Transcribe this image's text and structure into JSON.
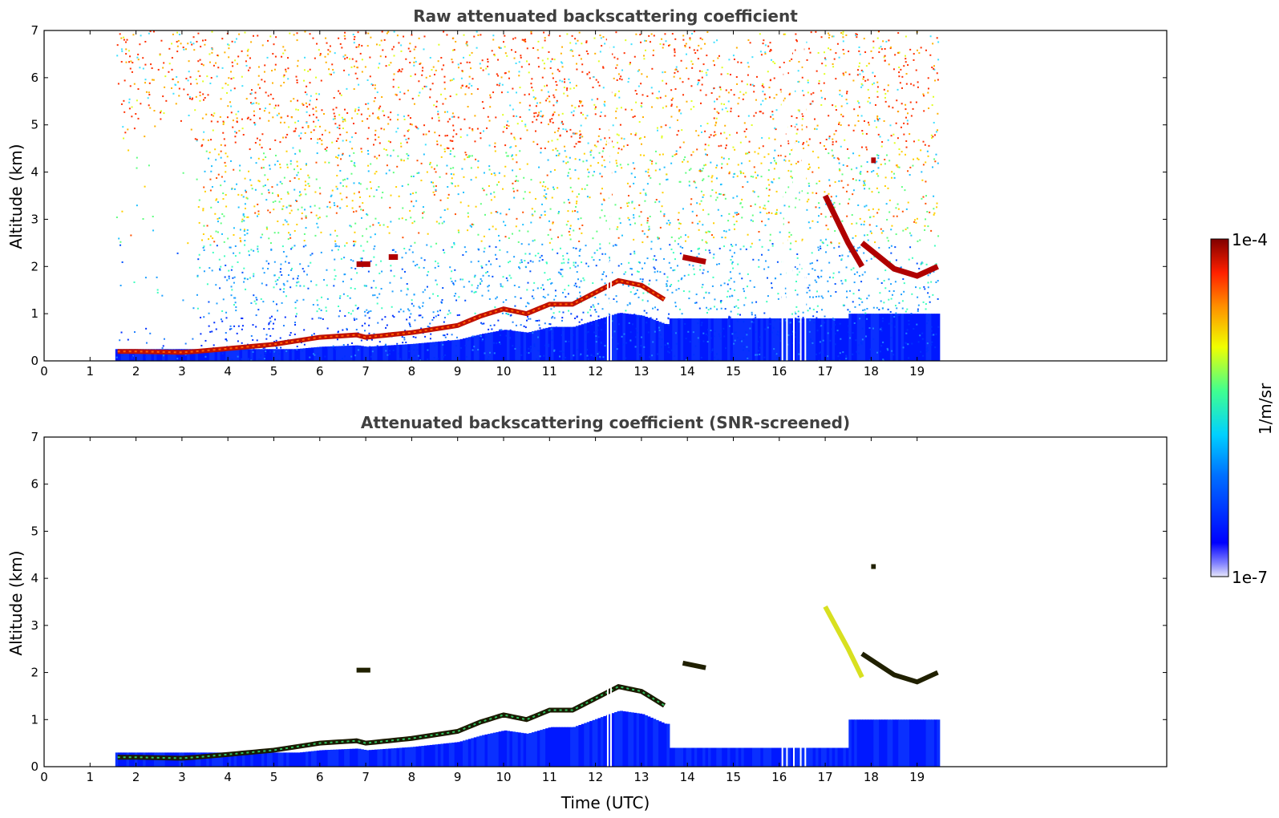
{
  "chart_data": [
    {
      "type": "heatmap",
      "title": "Raw attenuated backscattering coefficient",
      "xlabel": "",
      "ylabel": "Altitude (km)",
      "xlim": [
        0,
        24
      ],
      "ylim": [
        0,
        7
      ],
      "x_ticks": [
        "0",
        "1",
        "2",
        "3",
        "4",
        "5",
        "6",
        "7",
        "8",
        "9",
        "10",
        "11",
        "12",
        "13",
        "14",
        "15",
        "16",
        "17",
        "18",
        "19"
      ],
      "y_ticks": [
        "0",
        "1",
        "2",
        "3",
        "4",
        "5",
        "6",
        "7"
      ],
      "data_time_range": [
        1.55,
        19.45
      ],
      "boundary_layer_top": {
        "x": [
          1.6,
          2.0,
          3.0,
          3.3,
          4.0,
          5.0,
          6.0,
          6.8,
          7.0,
          8.0,
          9.0,
          9.5,
          10.0,
          10.5,
          11.0,
          11.5,
          12.0,
          12.5,
          13.0,
          13.5
        ],
        "y": [
          0.2,
          0.2,
          0.18,
          0.2,
          0.26,
          0.35,
          0.5,
          0.55,
          0.5,
          0.6,
          0.75,
          0.95,
          1.1,
          1.0,
          1.2,
          1.2,
          1.45,
          1.7,
          1.6,
          1.3
        ]
      },
      "cloud_layers": [
        {
          "x": [
            6.8,
            7.1
          ],
          "y": [
            2.05,
            2.05
          ]
        },
        {
          "x": [
            7.5,
            7.7
          ],
          "y": [
            2.2,
            2.2
          ]
        },
        {
          "x": [
            13.9,
            14.4
          ],
          "y": [
            2.2,
            2.1
          ]
        },
        {
          "x": [
            17.0,
            17.5,
            17.8
          ],
          "y": [
            3.5,
            2.5,
            2.0
          ]
        },
        {
          "x": [
            17.8,
            18.5,
            19.0,
            19.45
          ],
          "y": [
            2.5,
            1.95,
            1.8,
            2.0
          ]
        },
        {
          "x": [
            18.0,
            18.1
          ],
          "y": [
            4.25,
            4.25
          ]
        }
      ],
      "colorbar": {
        "min": "1e-7",
        "max": "1e-4",
        "label": "1/m/sr",
        "colormap": "jet"
      }
    },
    {
      "type": "heatmap",
      "title": "Attenuated backscattering coefficient (SNR-screened)",
      "xlabel": "Time (UTC)",
      "ylabel": "Altitude (km)",
      "xlim": [
        0,
        24
      ],
      "ylim": [
        0,
        7
      ],
      "x_ticks": [
        "0",
        "1",
        "2",
        "3",
        "4",
        "5",
        "6",
        "7",
        "8",
        "9",
        "10",
        "11",
        "12",
        "13",
        "14",
        "15",
        "16",
        "17",
        "18",
        "19"
      ],
      "y_ticks": [
        "0",
        "1",
        "2",
        "3",
        "4",
        "5",
        "6",
        "7"
      ],
      "data_time_range": [
        1.55,
        19.45
      ],
      "boundary_layer_top": {
        "x": [
          1.6,
          2.0,
          3.0,
          3.3,
          4.0,
          5.0,
          6.0,
          6.8,
          7.0,
          8.0,
          9.0,
          9.5,
          10.0,
          10.5,
          11.0,
          11.5,
          12.0,
          12.5,
          13.0,
          13.5
        ],
        "y": [
          0.2,
          0.2,
          0.18,
          0.2,
          0.26,
          0.35,
          0.5,
          0.55,
          0.5,
          0.6,
          0.75,
          0.95,
          1.1,
          1.0,
          1.2,
          1.2,
          1.45,
          1.7,
          1.6,
          1.3
        ]
      },
      "colorbar": {
        "min": "1e-7",
        "max": "1e-4",
        "label": "1/m/sr",
        "colormap": "jet"
      }
    }
  ]
}
